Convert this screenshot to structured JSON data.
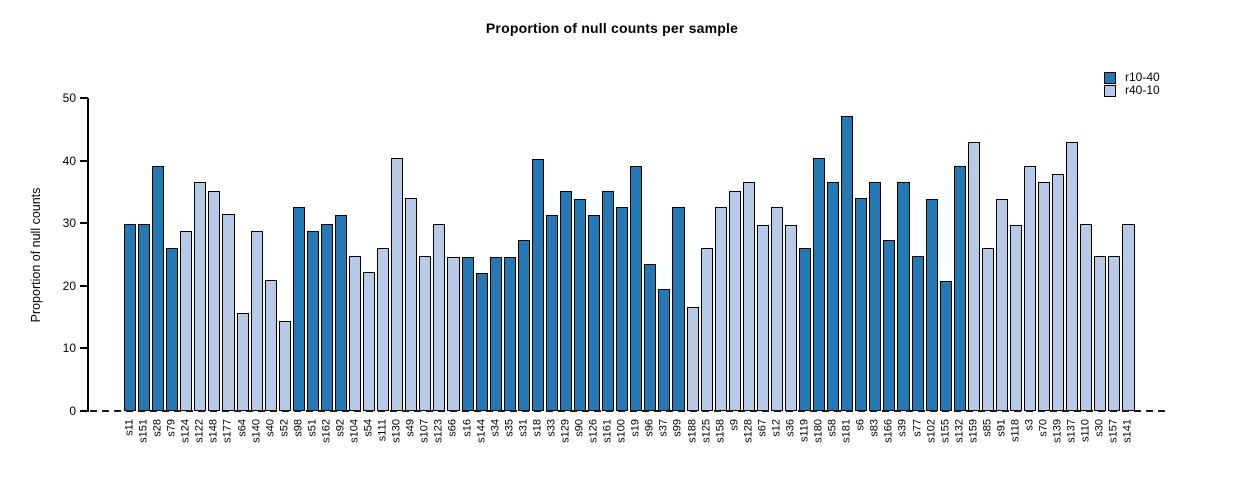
{
  "title": "Proportion of null counts per sample",
  "y_axis": {
    "label": "Proportion of null counts",
    "ticks": [
      0,
      10,
      20,
      30,
      40,
      50
    ],
    "max": 50
  },
  "legend": [
    {
      "label": "r10-40",
      "color": "#2478b4"
    },
    {
      "label": "r40-10",
      "color": "#b7cbe9"
    }
  ],
  "chart_data": {
    "type": "bar",
    "title": "Proportion of null counts per sample",
    "xlabel": "",
    "ylabel": "Proportion of null counts",
    "ylim": [
      0,
      50
    ],
    "yticks": [
      0,
      10,
      20,
      30,
      40,
      50
    ],
    "grid": false,
    "legend_position": "top-right",
    "bar_border_color": "#000000",
    "zero_line_style": "dashed",
    "categories": [
      "s11",
      "s151",
      "s28",
      "s79",
      "s124",
      "s122",
      "s148",
      "s177",
      "s64",
      "s140",
      "s40",
      "s52",
      "s98",
      "s51",
      "s162",
      "s92",
      "s104",
      "s54",
      "s111",
      "s130",
      "s49",
      "s107",
      "s123",
      "s66",
      "s16",
      "s144",
      "s34",
      "s35",
      "s31",
      "s18",
      "s33",
      "s129",
      "s90",
      "s126",
      "s161",
      "s100",
      "s19",
      "s96",
      "s37",
      "s99",
      "s188",
      "s125",
      "s158",
      "s9",
      "s128",
      "s67",
      "s12",
      "s36",
      "s119",
      "s180",
      "s58",
      "s181",
      "s6",
      "s83",
      "s166",
      "s39",
      "s77",
      "s102",
      "s155",
      "s132",
      "s159",
      "s85",
      "s91",
      "s118",
      "s3",
      "s70",
      "s139",
      "s137",
      "s110",
      "s30",
      "s157",
      "s141"
    ],
    "values": [
      29.9,
      29.9,
      39.2,
      26.1,
      28.7,
      36.6,
      35.2,
      31.4,
      15.7,
      28.7,
      20.9,
      14.4,
      32.6,
      28.7,
      29.9,
      31.3,
      24.8,
      22.2,
      26.1,
      40.4,
      34.0,
      24.7,
      29.9,
      24.6,
      24.6,
      22.1,
      24.6,
      24.6,
      27.4,
      40.3,
      31.3,
      35.1,
      33.9,
      31.3,
      35.1,
      32.6,
      39.2,
      23.5,
      19.5,
      32.6,
      16.6,
      26.0,
      32.6,
      35.1,
      36.6,
      29.8,
      32.6,
      29.8,
      26.0,
      40.4,
      36.6,
      47.1,
      34.0,
      36.6,
      27.4,
      36.6,
      24.7,
      33.9,
      20.8,
      39.2,
      43.0,
      26.0,
      33.9,
      29.8,
      39.1,
      36.6,
      37.9,
      43.0,
      29.9,
      24.7,
      24.7,
      29.9
    ],
    "bar_groups": [
      "r10-40",
      "r10-40",
      "r10-40",
      "r10-40",
      "r40-10",
      "r40-10",
      "r40-10",
      "r40-10",
      "r40-10",
      "r40-10",
      "r40-10",
      "r40-10",
      "r10-40",
      "r10-40",
      "r10-40",
      "r10-40",
      "r40-10",
      "r40-10",
      "r40-10",
      "r40-10",
      "r40-10",
      "r40-10",
      "r40-10",
      "r40-10",
      "r10-40",
      "r10-40",
      "r10-40",
      "r10-40",
      "r10-40",
      "r10-40",
      "r10-40",
      "r10-40",
      "r10-40",
      "r10-40",
      "r10-40",
      "r10-40",
      "r10-40",
      "r10-40",
      "r10-40",
      "r10-40",
      "r40-10",
      "r40-10",
      "r40-10",
      "r40-10",
      "r40-10",
      "r40-10",
      "r40-10",
      "r40-10",
      "r10-40",
      "r10-40",
      "r10-40",
      "r10-40",
      "r10-40",
      "r10-40",
      "r10-40",
      "r10-40",
      "r10-40",
      "r10-40",
      "r10-40",
      "r10-40",
      "r40-10",
      "r40-10",
      "r40-10",
      "r40-10",
      "r40-10",
      "r40-10",
      "r40-10",
      "r40-10",
      "r40-10",
      "r40-10",
      "r40-10",
      "r40-10"
    ],
    "series": [
      {
        "name": "r10-40",
        "color": "#2478b4"
      },
      {
        "name": "r40-10",
        "color": "#b7cbe9"
      }
    ]
  }
}
